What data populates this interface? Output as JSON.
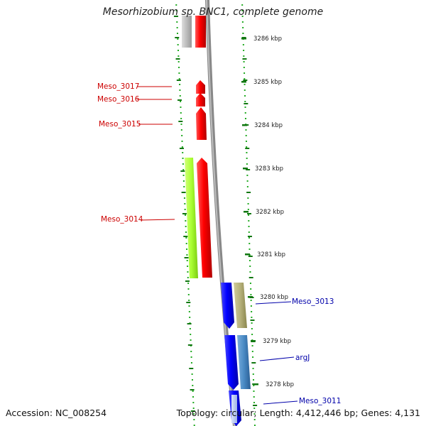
{
  "title": "Mesorhizobium sp. BNC1, complete genome",
  "footer": {
    "accession": "Accession: NC_008254",
    "topology": "Topology: circular; Length: 4,412,446 bp; Genes: 4,131"
  },
  "scale_labels": [
    "3286 kbp",
    "3285 kbp",
    "3284 kbp",
    "3283 kbp",
    "3282 kbp",
    "3281 kbp",
    "3280 kbp",
    "3279 kbp",
    "3278 kbp"
  ],
  "gene_labels": [
    {
      "text": "Meso_3017",
      "strand": "reverse"
    },
    {
      "text": "Meso_3016",
      "strand": "reverse"
    },
    {
      "text": "Meso_3015",
      "strand": "reverse"
    },
    {
      "text": "Meso_3014",
      "strand": "reverse"
    },
    {
      "text": "Meso_3013",
      "strand": "forward"
    },
    {
      "text": "argJ",
      "strand": "forward"
    },
    {
      "text": "Meso_3011",
      "strand": "forward"
    }
  ],
  "colors": {
    "reverse_cds": "#ff0000",
    "forward_cds": "#0000ff",
    "reverse_label": "#cc0000",
    "forward_label": "#0000aa",
    "backbone": "#888888",
    "dotted_ring": "#22aa22",
    "cog_lime": "#aaff33",
    "cog_khaki": "#b5b07a",
    "cog_steelblue": "#4a8ac4",
    "cog_lightblue": "#b8c8ee",
    "cog_grey": "#bbbbbb"
  }
}
